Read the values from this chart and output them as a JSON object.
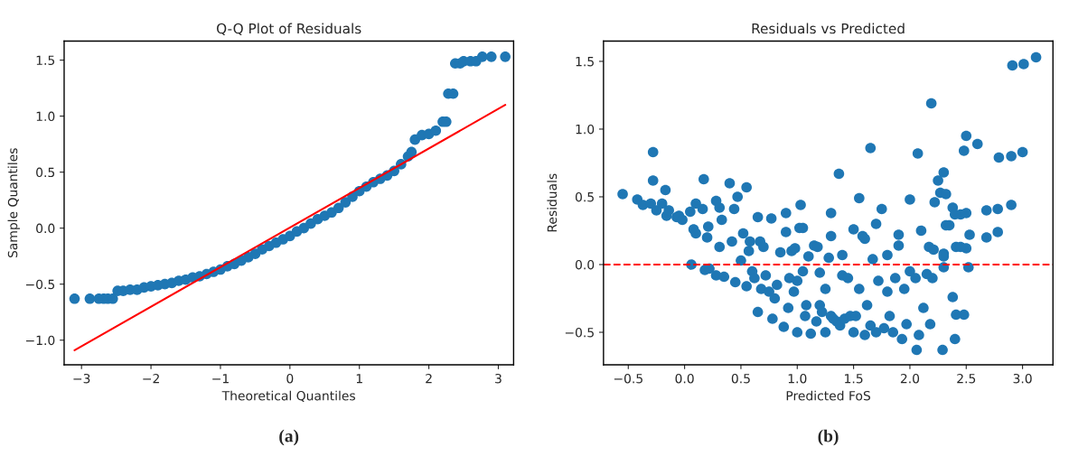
{
  "chart_data": [
    {
      "type": "scatter",
      "title": "Q-Q Plot of Residuals",
      "xlabel": "Theoretical Quantiles",
      "ylabel": "Sample Quantiles",
      "xlim": [
        -3.25,
        3.22
      ],
      "ylim": [
        -1.22,
        1.67
      ],
      "xticks": [
        {
          "value": -3,
          "label": "−3"
        },
        {
          "value": -2,
          "label": "−2"
        },
        {
          "value": -1,
          "label": "−1"
        },
        0,
        1,
        2,
        3
      ],
      "yticks": [
        {
          "value": -1.0,
          "label": "−1.0"
        },
        {
          "value": -0.5,
          "label": "−0.5"
        },
        {
          "value": 0.0,
          "label": "0.0"
        },
        {
          "value": 0.5,
          "label": "0.5"
        },
        {
          "value": 1.0,
          "label": "1.0"
        },
        {
          "value": 1.5,
          "label": "1.5"
        }
      ],
      "grid": false,
      "annotations": [
        "(a)"
      ],
      "series": [
        {
          "type": "scatter",
          "color": "#1f77b4",
          "marker": "circle",
          "x": [
            -3.1,
            -2.88,
            -2.75,
            -2.68,
            -2.62,
            -2.55,
            -2.48,
            -2.4,
            -2.3,
            -2.2,
            -2.1,
            -2.0,
            -1.9,
            -1.8,
            -1.7,
            -1.6,
            -1.5,
            -1.4,
            -1.3,
            -1.2,
            -1.1,
            -1.0,
            -0.9,
            -0.8,
            -0.7,
            -0.6,
            -0.5,
            -0.4,
            -0.3,
            -0.2,
            -0.1,
            0.0,
            0.1,
            0.2,
            0.3,
            0.4,
            0.5,
            0.6,
            0.7,
            0.8,
            0.9,
            1.0,
            1.1,
            1.2,
            1.3,
            1.4,
            1.5,
            1.6,
            1.7,
            1.75,
            1.8,
            1.9,
            2.0,
            2.1,
            2.2,
            2.25,
            2.28,
            2.35,
            2.38,
            2.45,
            2.5,
            2.6,
            2.68,
            2.77,
            2.9,
            3.1
          ],
          "values": [
            -0.63,
            -0.63,
            -0.63,
            -0.63,
            -0.63,
            -0.63,
            -0.56,
            -0.56,
            -0.55,
            -0.55,
            -0.53,
            -0.52,
            -0.51,
            -0.5,
            -0.49,
            -0.47,
            -0.46,
            -0.44,
            -0.43,
            -0.41,
            -0.39,
            -0.37,
            -0.34,
            -0.32,
            -0.29,
            -0.26,
            -0.23,
            -0.19,
            -0.16,
            -0.13,
            -0.1,
            -0.07,
            -0.03,
            0.0,
            0.04,
            0.08,
            0.11,
            0.14,
            0.18,
            0.23,
            0.28,
            0.33,
            0.37,
            0.41,
            0.44,
            0.47,
            0.51,
            0.57,
            0.64,
            0.68,
            0.79,
            0.83,
            0.84,
            0.87,
            0.95,
            0.95,
            1.2,
            1.2,
            1.47,
            1.47,
            1.49,
            1.49,
            1.49,
            1.53,
            1.53,
            1.53
          ]
        },
        {
          "type": "line",
          "color": "#ff0000",
          "marker": "none",
          "line_style": "solid",
          "x": [
            -3.1,
            3.1
          ],
          "values": [
            -1.09,
            1.1
          ]
        }
      ]
    },
    {
      "type": "scatter",
      "title": "Residuals vs Predicted",
      "xlabel": "Predicted FoS",
      "ylabel": "Residuals",
      "xlim": [
        -0.72,
        3.27
      ],
      "ylim": [
        -0.74,
        1.65
      ],
      "xticks": [
        {
          "value": -0.5,
          "label": "−0.5"
        },
        {
          "value": 0.0,
          "label": "0.0"
        },
        {
          "value": 0.5,
          "label": "0.5"
        },
        {
          "value": 1.0,
          "label": "1.0"
        },
        {
          "value": 1.5,
          "label": "1.5"
        },
        {
          "value": 2.0,
          "label": "2.0"
        },
        {
          "value": 2.5,
          "label": "2.5"
        },
        {
          "value": 3.0,
          "label": "3.0"
        }
      ],
      "yticks": [
        {
          "value": -0.5,
          "label": "−0.5"
        },
        {
          "value": 0.0,
          "label": "0.0"
        },
        {
          "value": 0.5,
          "label": "0.5"
        },
        {
          "value": 1.0,
          "label": "1.0"
        },
        {
          "value": 1.5,
          "label": "1.5"
        }
      ],
      "grid": false,
      "annotations": [
        "(b)"
      ],
      "ref_lines": [
        {
          "axis": "y",
          "value": 0,
          "color": "#ff0000",
          "line_style": "dashed"
        }
      ],
      "series": [
        {
          "type": "scatter",
          "color": "#1f77b4",
          "marker": "circle",
          "x": [
            -0.55,
            -0.42,
            -0.37,
            -0.3,
            -0.28,
            -0.28,
            -0.25,
            -0.2,
            -0.17,
            -0.16,
            -0.14,
            -0.07,
            -0.05,
            -0.02,
            0.05,
            0.06,
            0.08,
            0.1,
            0.1,
            0.16,
            0.17,
            0.18,
            0.2,
            0.21,
            0.22,
            0.28,
            0.28,
            0.31,
            0.31,
            0.33,
            0.35,
            0.4,
            0.42,
            0.44,
            0.45,
            0.47,
            0.5,
            0.52,
            0.55,
            0.55,
            0.57,
            0.58,
            0.6,
            0.62,
            0.65,
            0.65,
            0.67,
            0.68,
            0.7,
            0.72,
            0.75,
            0.77,
            0.78,
            0.8,
            0.82,
            0.85,
            0.88,
            0.9,
            0.9,
            0.92,
            0.93,
            0.95,
            0.97,
            0.98,
            1.0,
            1.0,
            1.02,
            1.03,
            1.05,
            1.05,
            1.07,
            1.08,
            1.1,
            1.12,
            1.15,
            1.17,
            1.18,
            1.2,
            1.2,
            1.22,
            1.25,
            1.25,
            1.28,
            1.3,
            1.3,
            1.3,
            1.32,
            1.35,
            1.37,
            1.38,
            1.4,
            1.4,
            1.42,
            1.45,
            1.47,
            1.5,
            1.5,
            1.52,
            1.55,
            1.55,
            1.58,
            1.6,
            1.6,
            1.62,
            1.65,
            1.65,
            1.67,
            1.7,
            1.7,
            1.72,
            1.75,
            1.77,
            1.8,
            1.8,
            1.82,
            1.85,
            1.87,
            1.9,
            1.9,
            1.93,
            1.95,
            1.97,
            2.0,
            2.0,
            2.05,
            2.06,
            2.07,
            2.08,
            2.1,
            2.12,
            2.15,
            2.17,
            2.18,
            2.19,
            2.2,
            2.21,
            2.22,
            2.25,
            2.27,
            2.29,
            2.3,
            2.3,
            2.32,
            2.35,
            2.38,
            2.4,
            2.41,
            2.45,
            2.48,
            2.5,
            2.3,
            2.3,
            2.32,
            2.38,
            2.4,
            2.41,
            2.45,
            2.48,
            2.5,
            2.5,
            2.52,
            2.53,
            2.6,
            2.68,
            2.68,
            2.78,
            2.79,
            2.78,
            2.9,
            2.9,
            2.91,
            3.0,
            3.01,
            3.12
          ],
          "values": [
            0.52,
            0.48,
            0.44,
            0.45,
            0.83,
            0.62,
            0.4,
            0.45,
            0.55,
            0.36,
            0.4,
            0.35,
            0.36,
            0.33,
            0.39,
            0.0,
            0.26,
            0.45,
            0.23,
            0.41,
            0.63,
            -0.04,
            0.2,
            0.28,
            -0.03,
            0.47,
            -0.08,
            0.42,
            0.13,
            0.33,
            -0.09,
            0.6,
            0.17,
            0.41,
            -0.13,
            0.5,
            0.03,
            0.23,
            0.57,
            -0.16,
            0.1,
            0.17,
            -0.05,
            -0.1,
            0.35,
            -0.35,
            0.17,
            -0.18,
            0.13,
            -0.08,
            -0.2,
            0.34,
            -0.4,
            -0.25,
            -0.15,
            0.09,
            -0.46,
            0.38,
            0.24,
            -0.32,
            -0.1,
            0.1,
            -0.2,
            0.12,
            -0.12,
            -0.5,
            0.27,
            0.44,
            -0.05,
            0.27,
            -0.38,
            -0.3,
            0.06,
            -0.51,
            0.14,
            -0.42,
            0.13,
            -0.06,
            -0.3,
            -0.35,
            -0.5,
            -0.18,
            0.05,
            0.38,
            0.21,
            -0.38,
            -0.4,
            -0.42,
            0.67,
            -0.45,
            0.07,
            -0.08,
            -0.4,
            -0.1,
            -0.38,
            0.26,
            -0.5,
            -0.38,
            0.49,
            -0.18,
            0.21,
            0.19,
            -0.52,
            -0.3,
            0.86,
            -0.45,
            0.04,
            0.3,
            -0.5,
            -0.12,
            0.41,
            -0.47,
            -0.2,
            0.07,
            -0.38,
            -0.5,
            -0.1,
            0.14,
            0.22,
            -0.55,
            -0.18,
            -0.44,
            0.48,
            -0.05,
            -0.1,
            -0.63,
            0.82,
            -0.52,
            0.25,
            -0.32,
            -0.07,
            0.13,
            -0.44,
            1.19,
            -0.1,
            0.11,
            0.46,
            0.62,
            0.53,
            -0.63,
            0.08,
            -0.02,
            0.52,
            0.29,
            -0.24,
            -0.55,
            0.13,
            0.37,
            -0.37,
            0.12,
            0.68,
            0.06,
            0.29,
            0.42,
            0.37,
            -0.37,
            0.13,
            0.84,
            0.95,
            0.38,
            -0.02,
            0.22,
            0.89,
            0.2,
            0.4,
            0.24,
            0.79,
            0.41,
            0.44,
            0.8,
            1.47,
            0.83,
            1.48,
            1.53
          ]
        }
      ]
    }
  ]
}
